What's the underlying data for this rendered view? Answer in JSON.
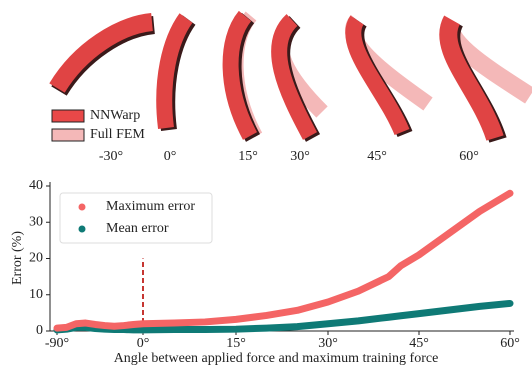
{
  "figure_panel": {
    "labels": [
      "-30°",
      "0°",
      "15°",
      "30°",
      "45°",
      "60°"
    ],
    "legend": [
      {
        "name": "NNWarp",
        "color": "#e84848"
      },
      {
        "name": "Full FEM",
        "color": "#f4b8b8"
      }
    ]
  },
  "chart_data": {
    "type": "line",
    "x_label": "Angle between applied force and maximum training force",
    "y_label": "Error (%)",
    "x": [
      -90,
      -80,
      -70,
      -60,
      -50,
      -40,
      -30,
      -20,
      -10,
      0,
      5,
      10,
      15,
      20,
      25,
      30,
      35,
      40,
      42,
      45,
      50,
      55,
      60
    ],
    "series": [
      {
        "name": "Maximum error",
        "color": "#f46565",
        "values": [
          0.8,
          1.0,
          2.0,
          2.2,
          1.8,
          1.5,
          1.3,
          1.5,
          1.8,
          2.0,
          2.2,
          2.5,
          3.2,
          4.3,
          5.7,
          8.0,
          11,
          15,
          18,
          21,
          27,
          33,
          38
        ]
      },
      {
        "name": "Mean error",
        "color": "#0f7a76",
        "values": [
          0.3,
          0.5,
          1.0,
          1.0,
          0.7,
          0.5,
          0.4,
          0.4,
          0.3,
          0.3,
          0.4,
          0.4,
          0.5,
          0.8,
          1.2,
          2.0,
          2.8,
          3.8,
          4.2,
          4.8,
          5.8,
          6.8,
          7.6
        ]
      }
    ],
    "xlim": [
      -90,
      60
    ],
    "ylim": [
      0,
      40
    ],
    "xticks": [
      {
        "value": -90,
        "label": "-90°"
      },
      {
        "value": 0,
        "label": "0°"
      },
      {
        "value": 15,
        "label": "15°"
      },
      {
        "value": 30,
        "label": "30°"
      },
      {
        "value": 45,
        "label": "45°"
      },
      {
        "value": 60,
        "label": "60°"
      }
    ],
    "yticks": [
      0,
      10,
      20,
      30,
      40
    ],
    "reference_line": {
      "x": 0,
      "y_top": 20,
      "color": "#c0201c"
    },
    "legend": "upper left"
  }
}
